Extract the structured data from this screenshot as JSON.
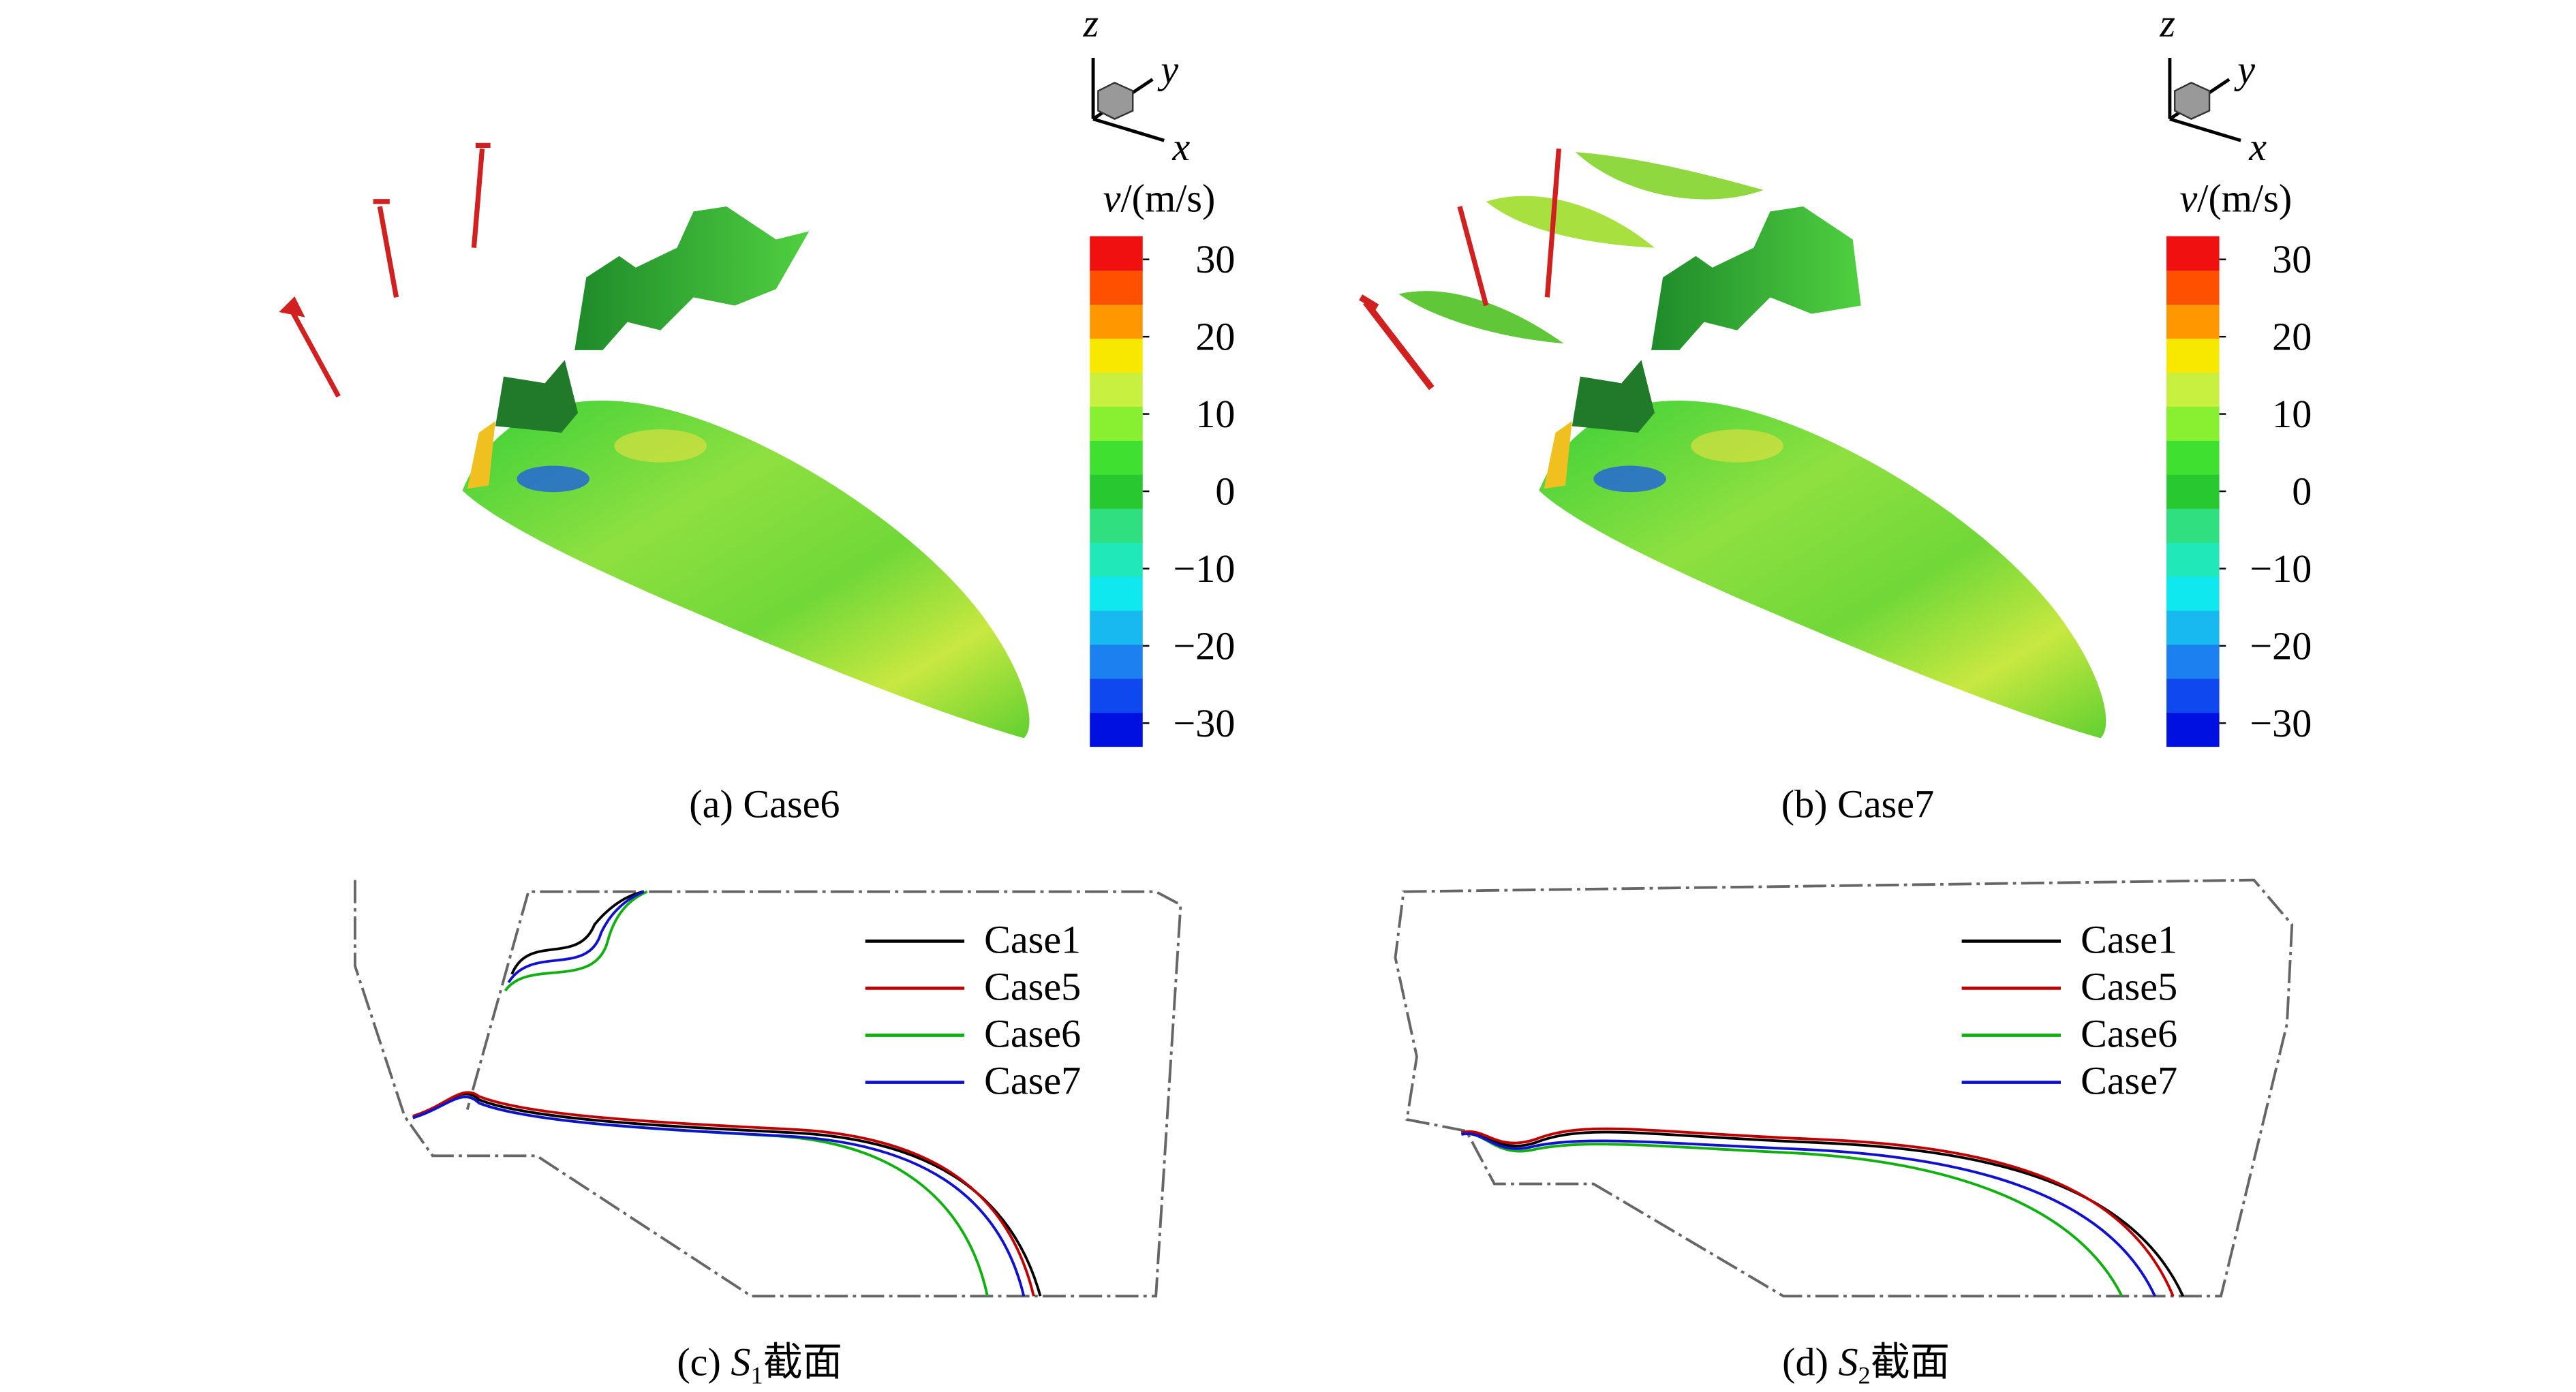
{
  "panels": [
    {
      "caption": "(a) Case6",
      "triad": {
        "z": "z",
        "y": "y",
        "x": "x"
      },
      "colorbar": {
        "title_var": "v",
        "title_unit": "/(m/s)",
        "lim": [
          -33,
          33
        ],
        "colors": [
          "#0010e0",
          "#1048f0",
          "#1c80f0",
          "#18b8f0",
          "#10e8f0",
          "#20e8b8",
          "#30e080",
          "#28c830",
          "#40e030",
          "#88f030",
          "#c8f040",
          "#f8e800",
          "#ff9800",
          "#ff5000",
          "#f01010"
        ],
        "ticks": [
          {
            "value": 30,
            "label": "30"
          },
          {
            "value": 20,
            "label": "20"
          },
          {
            "value": 10,
            "label": "10"
          },
          {
            "value": 0,
            "label": "0"
          },
          {
            "value": -10,
            "label": "−10"
          },
          {
            "value": -20,
            "label": "−20"
          },
          {
            "value": -30,
            "label": "−30"
          }
        ]
      }
    },
    {
      "caption": "(b) Case7",
      "triad": {
        "z": "z",
        "y": "y",
        "x": "x"
      },
      "colorbar": {
        "title_var": "v",
        "title_unit": "/(m/s)",
        "lim": [
          -33,
          33
        ],
        "colors": [
          "#0010e0",
          "#1048f0",
          "#1c80f0",
          "#18b8f0",
          "#10e8f0",
          "#20e8b8",
          "#30e080",
          "#28c830",
          "#40e030",
          "#88f030",
          "#c8f040",
          "#f8e800",
          "#ff9800",
          "#ff5000",
          "#f01010"
        ],
        "ticks": [
          {
            "value": 30,
            "label": "30"
          },
          {
            "value": 20,
            "label": "20"
          },
          {
            "value": 10,
            "label": "10"
          },
          {
            "value": 0,
            "label": "0"
          },
          {
            "value": -10,
            "label": "−10"
          },
          {
            "value": -20,
            "label": "−20"
          },
          {
            "value": -30,
            "label": "−30"
          }
        ]
      }
    },
    {
      "caption": {
        "prefix": "(c)",
        "symbol": "S",
        "subscript": "1",
        "suffix": "截面"
      },
      "legend": [
        {
          "name": "Case1",
          "color": "#000000"
        },
        {
          "name": "Case5",
          "color": "#c00000"
        },
        {
          "name": "Case6",
          "color": "#10b010"
        },
        {
          "name": "Case7",
          "color": "#1010d0"
        }
      ]
    },
    {
      "caption": {
        "prefix": "(d)",
        "symbol": "S",
        "subscript": "2",
        "suffix": "截面"
      },
      "legend": [
        {
          "name": "Case1",
          "color": "#000000"
        },
        {
          "name": "Case5",
          "color": "#c00000"
        },
        {
          "name": "Case6",
          "color": "#10b010"
        },
        {
          "name": "Case7",
          "color": "#1010d0"
        }
      ]
    }
  ]
}
